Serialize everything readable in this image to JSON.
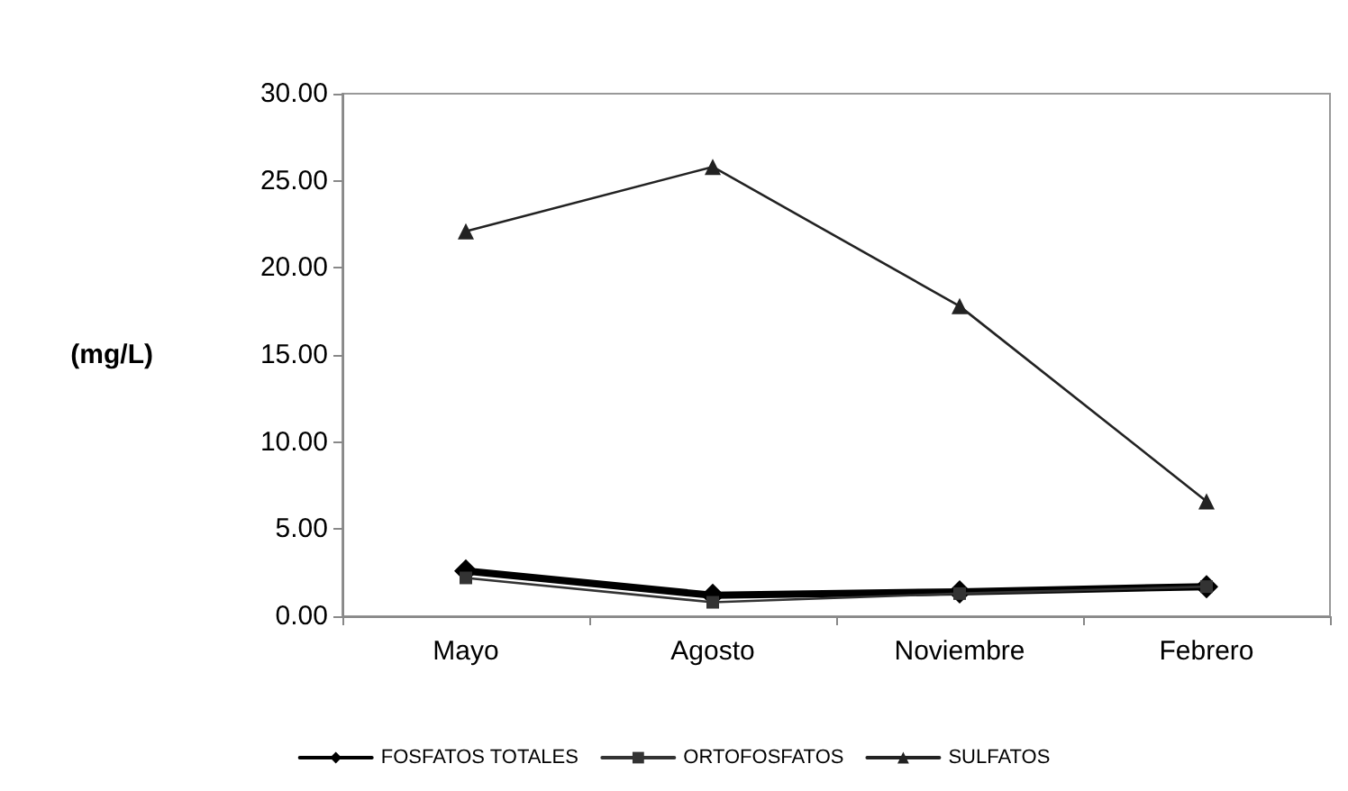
{
  "chart_data": {
    "type": "line",
    "ylabel": "(mg/L)",
    "categories": [
      "Mayo",
      "Agosto",
      "Noviembre",
      "Febrero"
    ],
    "series": [
      {
        "name": "FOSFATOS TOTALES",
        "color": "#000000",
        "marker": "diamond",
        "values": [
          2.6,
          1.2,
          1.4,
          1.7
        ]
      },
      {
        "name": "ORTOFOSFATOS",
        "color": "#333333",
        "marker": "square",
        "values": [
          2.2,
          0.8,
          1.3,
          1.7
        ]
      },
      {
        "name": "SULFATOS",
        "color": "#222222",
        "marker": "triangle",
        "values": [
          22.1,
          25.8,
          17.8,
          6.6
        ]
      }
    ],
    "ylim": [
      0,
      30
    ],
    "yticks": [
      {
        "value": 0,
        "label": "0.00"
      },
      {
        "value": 5,
        "label": "5.00"
      },
      {
        "value": 10,
        "label": "10.00"
      },
      {
        "value": 15,
        "label": "15.00"
      },
      {
        "value": 20,
        "label": "20.00"
      },
      {
        "value": 25,
        "label": "25.00"
      },
      {
        "value": 30,
        "label": "30.00"
      }
    ],
    "grid": false,
    "legend": "bottom"
  }
}
